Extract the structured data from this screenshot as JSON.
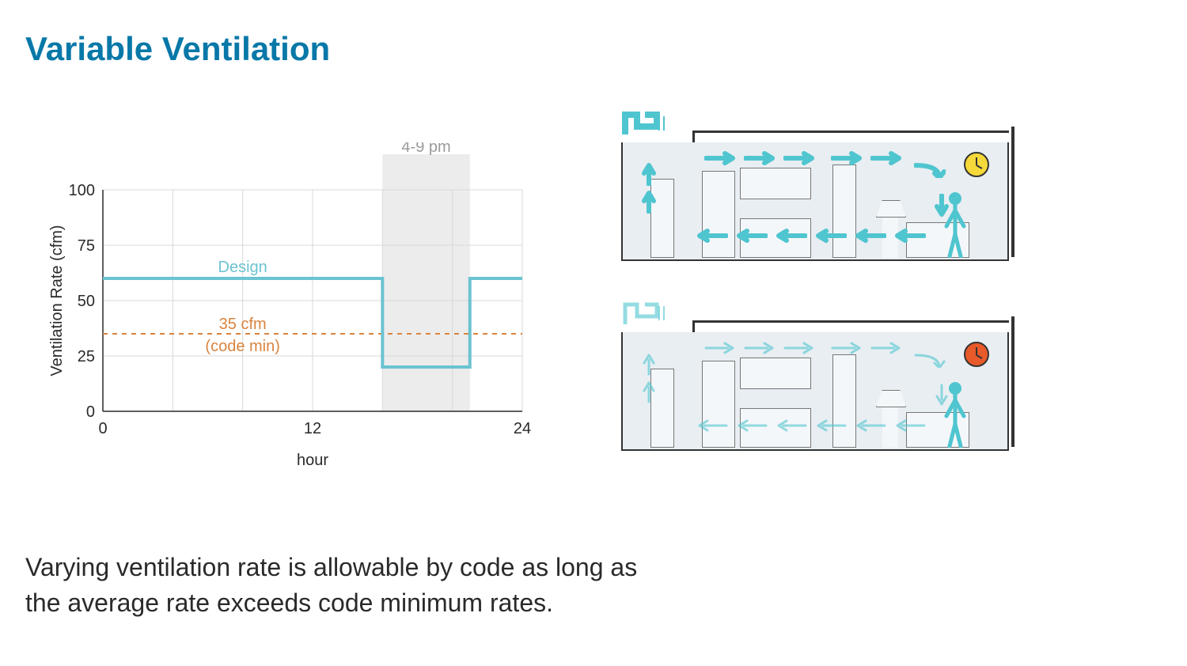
{
  "title": "Variable Ventilation",
  "title_color": "#0878a8",
  "description_line1": "Varying ventilation rate is allowable by code as long as",
  "description_line2": "the average rate exceeds code minimum rates.",
  "chart": {
    "type": "line-step",
    "xlabel": "hour",
    "ylabel": "Ventilation Rate (cfm)",
    "label_fontsize": 20,
    "axis_color": "#2a2a2a",
    "tick_fontsize": 20,
    "grid_color": "#d8d8d8",
    "background_color": "#ffffff",
    "xlim": [
      0,
      24
    ],
    "ylim": [
      0,
      100
    ],
    "xticks": [
      0,
      12,
      24
    ],
    "yticks": [
      0,
      25,
      50,
      75,
      100
    ],
    "x_minor_gridlines": [
      4,
      8,
      16,
      20
    ],
    "shaded_band": {
      "x_start": 16,
      "x_end": 21,
      "color": "#ececec",
      "label": "4-9 pm",
      "label_color": "#9a9a9a"
    },
    "code_min_line": {
      "y": 35,
      "color": "#d9843f",
      "dash": "6,6",
      "label_line1": "35 cfm",
      "label_line2": "(code min)"
    },
    "design_line": {
      "color": "#6bc3d1",
      "line_width": 4,
      "label": "Design",
      "points_x": [
        0,
        16,
        16,
        21,
        21,
        24
      ],
      "points_y": [
        60,
        60,
        20,
        20,
        60,
        60
      ]
    }
  },
  "diagrams": {
    "arrow_color_strong": "#4fc5cf",
    "arrow_color_weak": "#9bdbe0",
    "room_bg": "#e8eef2",
    "room_border": "#333333",
    "furniture_border": "#777777",
    "high": {
      "clock_color": "#f5d93a",
      "arrow_opacity": 1.0,
      "arrow_stroke_width": 6
    },
    "low": {
      "clock_color": "#e85a2a",
      "arrow_opacity": 0.6,
      "arrow_stroke_width": 3
    }
  }
}
